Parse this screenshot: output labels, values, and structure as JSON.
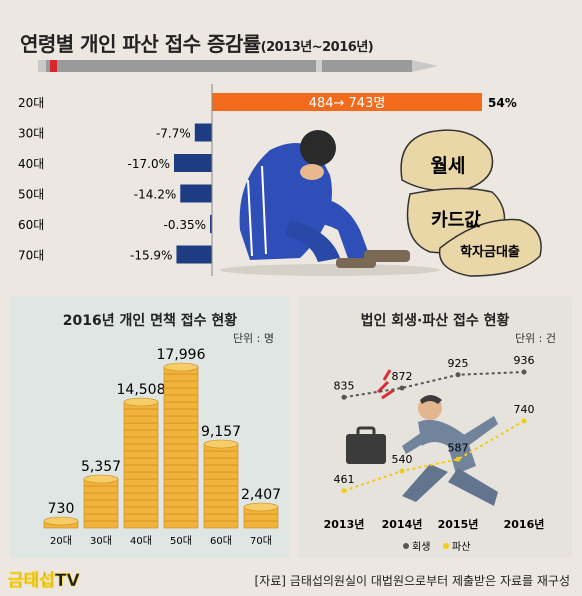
{
  "title": {
    "main": "연령별 개인 파산 접수 증감률",
    "sub": "(2013년~2016년)"
  },
  "chart_data": [
    {
      "type": "bar",
      "title": "연령별 개인 파산 접수 증감률 (2013년~2016년)",
      "categories": [
        "20대",
        "30대",
        "40대",
        "50대",
        "60대",
        "70대"
      ],
      "values": [
        54,
        -7.7,
        -17.0,
        -14.2,
        -0.35,
        -15.9
      ],
      "value_labels": [
        "54%",
        "-7.7%",
        "-17.0%",
        "-14.2%",
        "-0.35%",
        "-15.9%"
      ],
      "annotation": "484→ 743명",
      "colors": {
        "positive": "#f26a1b",
        "negative": "#1e3c82"
      }
    },
    {
      "type": "bar",
      "title": "2016년 개인 면책 접수 현황",
      "unit": "단위 : 명",
      "categories": [
        "20대",
        "30대",
        "40대",
        "50대",
        "60대",
        "70대"
      ],
      "values": [
        730,
        5357,
        14508,
        17996,
        9157,
        2407
      ],
      "value_labels": [
        "730",
        "5,357",
        "14,508",
        "17,996",
        "9,157",
        "2,407"
      ],
      "bar_style": "coin stacks",
      "colors": {
        "coin": "#f2b33a"
      }
    },
    {
      "type": "line",
      "title": "법인 회생·파산 접수 현황",
      "unit": "단위 : 건",
      "categories": [
        "2013년",
        "2014년",
        "2015년",
        "2016년"
      ],
      "series": [
        {
          "name": "회생",
          "values": [
            835,
            872,
            925,
            936
          ],
          "labels": [
            "835",
            "872",
            "925",
            "936"
          ],
          "color": "#555555"
        },
        {
          "name": "파산",
          "values": [
            461,
            540,
            587,
            740
          ],
          "labels": [
            "461",
            "540",
            "587",
            "740"
          ],
          "color": "#f2cc1c"
        }
      ],
      "legend": "bottom"
    }
  ],
  "bags": [
    "월세",
    "카드값",
    "학자금대출"
  ],
  "footer": {
    "logo": "금태섭TV",
    "source": "[자료] 금태섭의원실이 대법원으로부터 제출받은 자료를 재구성"
  }
}
